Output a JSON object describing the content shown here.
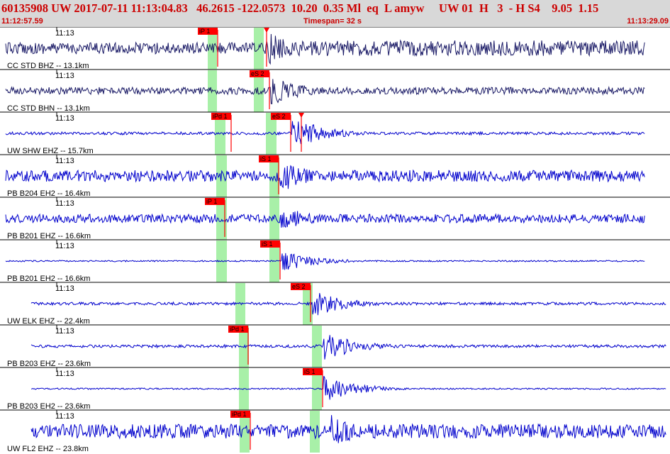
{
  "header": {
    "event_line": "60135908 UW 2017-07-11 11:13:04.83   46.2615 -122.0573  10.20  0.35 Ml  eq  L amyw     UW 01  H   3  - H S4    9.05  1.15",
    "start_time": "11:12:57.59",
    "timespan": "Timespan=  32 s",
    "end_time": "11:13:29.09"
  },
  "colors": {
    "header_bg": "#d8d8d8",
    "header_text": "#cc0000",
    "trace_blue": "#0000cc",
    "trace_dark": "#1a1a66",
    "pick": "#ff0000",
    "window": "#a8f0a8"
  },
  "traces": [
    {
      "label": "CC STD BHZ -- 13.1km",
      "minute": "11:13",
      "color": "dark",
      "windows": [
        [
          293,
          306
        ],
        [
          358,
          372
        ]
      ],
      "picks": [
        {
          "label": "iP 1",
          "x": 307
        },
        {
          "label": "",
          "x": 376
        }
      ],
      "noise": 8,
      "noise_end": 11,
      "burst": 374,
      "burst_amp": 26
    },
    {
      "label": "CC STD BHN -- 13.1km",
      "minute": "11:13",
      "color": "dark",
      "windows": [
        [
          293,
          306
        ],
        [
          358,
          372
        ]
      ],
      "picks": [
        {
          "label": "eS 2",
          "x": 380
        }
      ],
      "noise": 5,
      "noise_end": 5,
      "burst": 380,
      "burst_amp": 22
    },
    {
      "label": "UW SHW EHZ -- 15.7km",
      "minute": "11:13",
      "color": "blue",
      "windows": [
        [
          303,
          318
        ],
        [
          375,
          390
        ]
      ],
      "picks": [
        {
          "label": "iPd 1",
          "x": 326
        },
        {
          "label": "eS 2",
          "x": 410
        },
        {
          "label": "",
          "x": 425
        }
      ],
      "noise": 2,
      "noise_end": 2,
      "burst": 412,
      "burst_amp": 24
    },
    {
      "label": "PB B204 EH2 -- 16.4km",
      "minute": "11:13",
      "color": "blue",
      "windows": [
        [
          305,
          320
        ],
        [
          380,
          394
        ]
      ],
      "picks": [
        {
          "label": "iS 1",
          "x": 393
        }
      ],
      "noise": 8,
      "noise_end": 8,
      "burst": 394,
      "burst_amp": 24
    },
    {
      "label": "PB B201 EHZ -- 16.6km",
      "minute": "11:13",
      "color": "blue",
      "windows": [
        [
          305,
          320
        ],
        [
          380,
          394
        ]
      ],
      "picks": [
        {
          "label": "iP 1",
          "x": 317
        }
      ],
      "noise": 6,
      "noise_end": 6,
      "burst": 396,
      "burst_amp": 18
    },
    {
      "label": "PB B201 EH2 -- 16.6km",
      "minute": "11:13",
      "color": "blue",
      "windows": [
        [
          305,
          320
        ],
        [
          380,
          394
        ]
      ],
      "picks": [
        {
          "label": "iS 1",
          "x": 395
        }
      ],
      "noise": 1,
      "noise_end": 1,
      "burst": 396,
      "burst_amp": 16
    },
    {
      "label": "UW ELK EHZ -- 22.4km",
      "minute": "11:13",
      "color": "blue",
      "windows": [
        [
          332,
          346
        ],
        [
          427,
          441
        ]
      ],
      "picks": [
        {
          "label": "eS 2",
          "x": 438
        }
      ],
      "noise": 2,
      "noise_end": 2,
      "burst": 440,
      "burst_amp": 20
    },
    {
      "label": "PB B203 EHZ -- 23.6km",
      "minute": "11:13",
      "color": "blue",
      "windows": [
        [
          337,
          351
        ],
        [
          440,
          454
        ]
      ],
      "picks": [
        {
          "label": "iPd 1",
          "x": 350
        }
      ],
      "noise": 2,
      "noise_end": 2,
      "burst": 456,
      "burst_amp": 22
    },
    {
      "label": "PB B203 EH2 -- 23.6km",
      "minute": "11:13",
      "color": "blue",
      "windows": [
        [
          337,
          351
        ],
        [
          440,
          454
        ]
      ],
      "picks": [
        {
          "label": "iS 1",
          "x": 455
        }
      ],
      "noise": 1,
      "noise_end": 1,
      "burst": 456,
      "burst_amp": 20
    },
    {
      "label": "UW FL2 EHZ -- 23.8km",
      "minute": "11:13",
      "color": "blue",
      "windows": [
        [
          338,
          352
        ],
        [
          437,
          451
        ]
      ],
      "picks": [
        {
          "label": "iPd 1",
          "x": 353
        }
      ],
      "noise": 10,
      "noise_end": 10,
      "burst": 462,
      "burst_amp": 26
    }
  ]
}
